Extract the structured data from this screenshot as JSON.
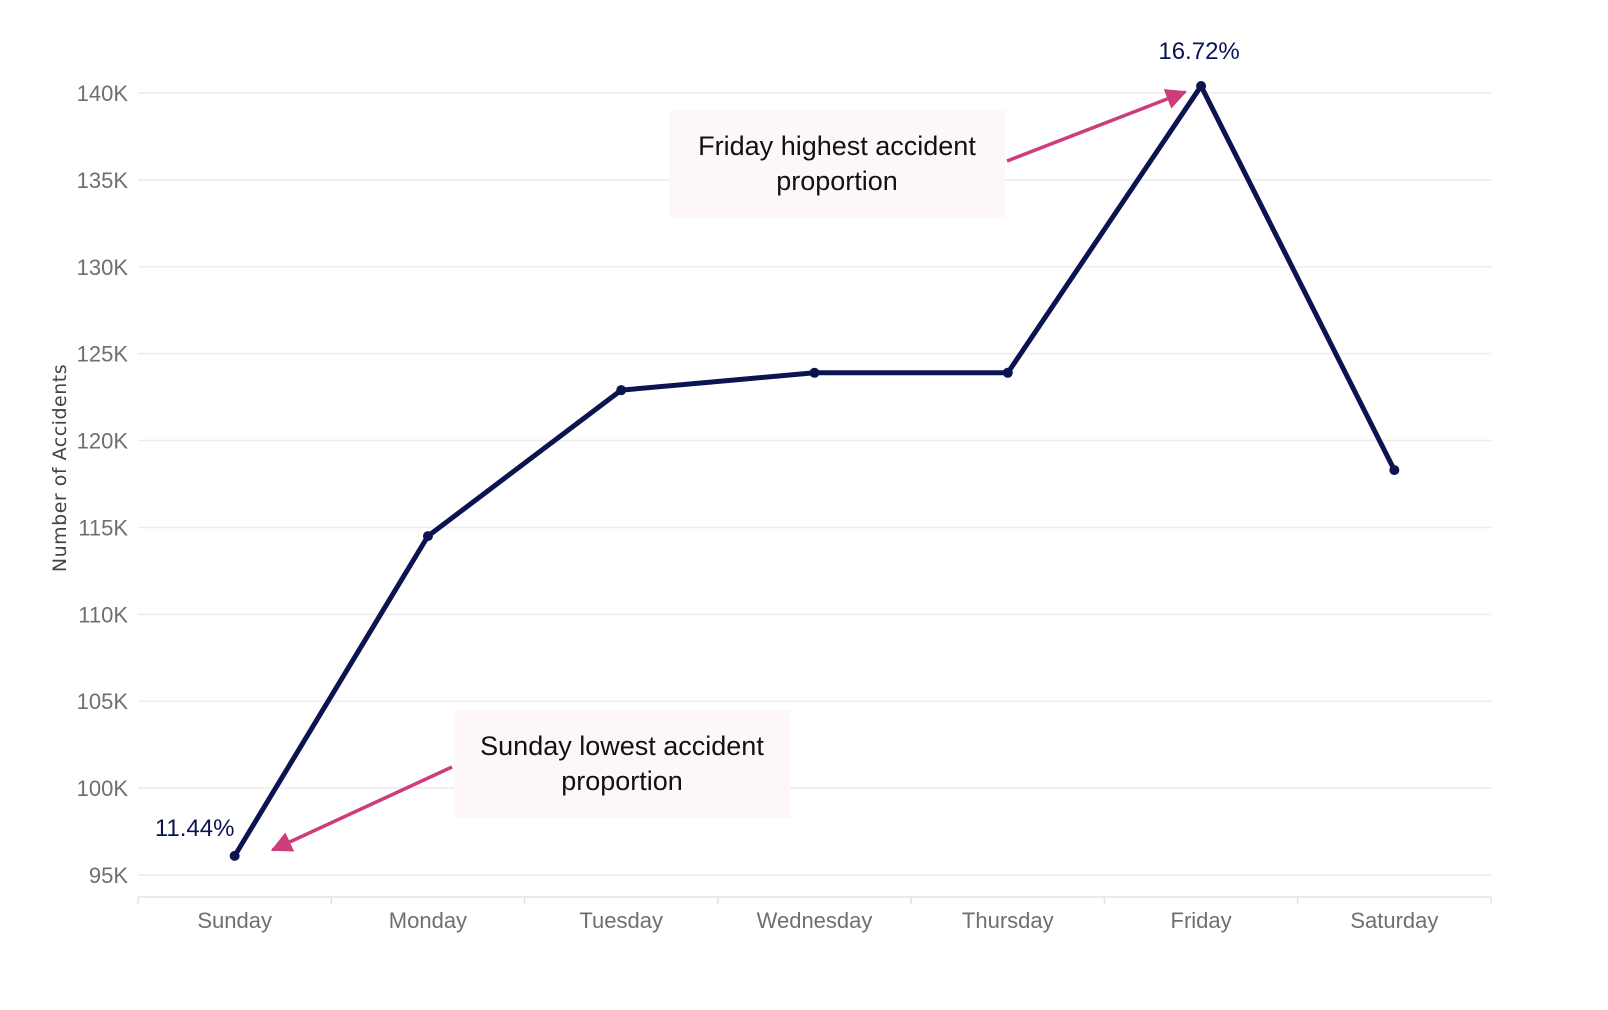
{
  "colors": {
    "line": "#0b1450",
    "label": "#0b1450",
    "arrow": "#cc3d7a",
    "annotation_bg": "#fdf7fb",
    "grid": "#ececec"
  },
  "chart_data": {
    "type": "line",
    "title": "",
    "xlabel": "",
    "ylabel": "Number of Accidents",
    "categories": [
      "Sunday",
      "Monday",
      "Tuesday",
      "Wednesday",
      "Thursday",
      "Friday",
      "Saturday"
    ],
    "series": [
      {
        "values": [
          96100,
          114500,
          122900,
          123900,
          123900,
          140400,
          118300
        ]
      }
    ],
    "ylim": [
      94000,
      142000
    ],
    "yticks": [
      95000,
      100000,
      105000,
      110000,
      115000,
      120000,
      125000,
      130000,
      135000,
      140000
    ],
    "ytick_labels": [
      "95K",
      "100K",
      "105K",
      "110K",
      "115K",
      "120K",
      "125K",
      "130K",
      "135K",
      "140K"
    ],
    "grid": true,
    "data_labels": [
      {
        "category": "Sunday",
        "text": "11.44%"
      },
      {
        "category": "Friday",
        "text": "16.72%"
      }
    ],
    "annotations": [
      {
        "text": "Friday highest accident\nproportion",
        "target": "Friday"
      },
      {
        "text": "Sunday lowest accident\nproportion",
        "target": "Sunday"
      }
    ]
  }
}
